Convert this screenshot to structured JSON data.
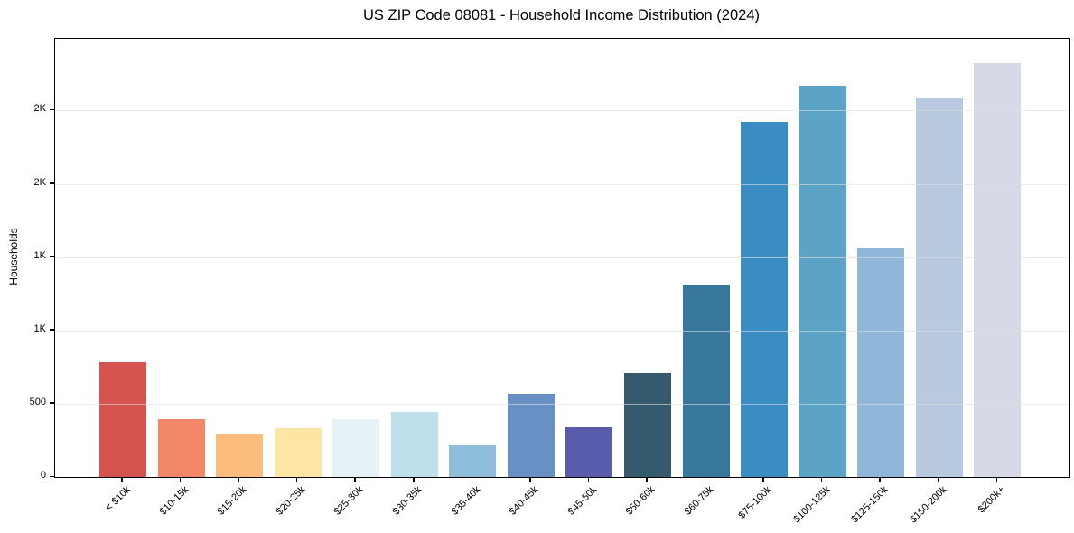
{
  "chart_data": {
    "type": "bar",
    "title": "US ZIP Code 08081 - Household Income Distribution (2024)",
    "xlabel": "",
    "ylabel": "Households",
    "categories": [
      "< $10k",
      "$10-15k",
      "$15-20k",
      "$20-25k",
      "$25-30k",
      "$30-35k",
      "$35-40k",
      "$40-45k",
      "$45-50k",
      "$50-60k",
      "$60-75k",
      "$75-100k",
      "$100-125k",
      "$125-150k",
      "$150-200k",
      "$200k+"
    ],
    "values": [
      785,
      395,
      295,
      330,
      395,
      445,
      215,
      570,
      340,
      712,
      1310,
      2420,
      2670,
      1558,
      2590,
      2825
    ],
    "bar_colors": [
      "#d5534f",
      "#f48768",
      "#fbbc7e",
      "#fde5a4",
      "#e5f2f6",
      "#bde0ec",
      "#8fbedd",
      "#6990c4",
      "#5a5cad",
      "#355a6e",
      "#38779d",
      "#3a8dc3",
      "#5ba4c8",
      "#90b7d9",
      "#b8c9e0",
      "#d7d9e7"
    ],
    "yticks": [
      {
        "value": 0,
        "label": "0"
      },
      {
        "value": 500,
        "label": "500"
      },
      {
        "value": 1000,
        "label": "1K"
      },
      {
        "value": 1500,
        "label": "1K"
      },
      {
        "value": 2000,
        "label": "2K"
      },
      {
        "value": 2500,
        "label": "2K"
      }
    ],
    "ylim": [
      0,
      2990
    ],
    "grid": "horizontal",
    "grid_above_bars": true,
    "legend": "none",
    "background_color": "#ffffff",
    "spine_color": "#000000",
    "grid_color": "#e1e1e1",
    "text_color": "#000000"
  }
}
